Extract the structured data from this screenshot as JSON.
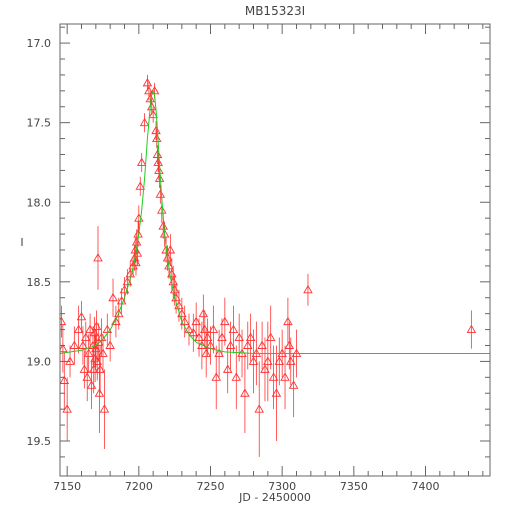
{
  "chart_data": {
    "type": "scatter",
    "title": "MB15323I",
    "xlabel": "JD - 2450000",
    "ylabel": "I",
    "xlim": [
      7145,
      7445
    ],
    "ylim": [
      19.72,
      16.88
    ],
    "y_inverted": true,
    "x_ticks": [
      "7150",
      "7200",
      "7250",
      "7300",
      "7350",
      "7400"
    ],
    "y_ticks": [
      "17.0",
      "17.5",
      "18.0",
      "18.5",
      "19.0",
      "19.5"
    ],
    "grid": false,
    "legend": "none",
    "colors": {
      "observations": "#ff3333",
      "model": "#22cc22",
      "axes": "#666666"
    },
    "series": [
      {
        "kind": "observations",
        "x": [
          7146,
          7147,
          7148,
          7150,
          7152,
          7155,
          7158,
          7160,
          7161,
          7162,
          7163,
          7164,
          7165,
          7166,
          7167,
          7168,
          7168.5,
          7169,
          7169.5,
          7170,
          7170.5,
          7171,
          7171.5,
          7172,
          7172.5,
          7173,
          7174,
          7175,
          7176,
          7178,
          7180,
          7182,
          7184,
          7186,
          7188,
          7190,
          7192,
          7194,
          7196,
          7197,
          7197.5,
          7198,
          7198.5,
          7199,
          7199.5,
          7200,
          7201,
          7202,
          7204,
          7206,
          7207,
          7208,
          7209,
          7210,
          7211,
          7212,
          7212.5,
          7213,
          7213.5,
          7214,
          7214.5,
          7215,
          7216,
          7217,
          7218,
          7219,
          7220,
          7221,
          7222,
          7223,
          7224,
          7225,
          7226,
          7228,
          7230,
          7232,
          7235,
          7238,
          7240,
          7242,
          7244,
          7245,
          7246,
          7247,
          7248,
          7250,
          7252,
          7254,
          7256,
          7258,
          7260,
          7262,
          7264,
          7266,
          7268,
          7270,
          7272,
          7274,
          7276,
          7278,
          7280,
          7282,
          7284,
          7286,
          7288,
          7290,
          7292,
          7294,
          7296,
          7298,
          7300,
          7302,
          7304,
          7305,
          7306,
          7308,
          7310,
          7318,
          7432
        ],
        "y": [
          18.75,
          18.92,
          19.12,
          19.3,
          19.0,
          18.9,
          18.8,
          18.72,
          18.9,
          19.05,
          18.85,
          19.1,
          18.95,
          18.8,
          19.15,
          18.9,
          19.05,
          18.82,
          18.98,
          18.92,
          18.78,
          19.0,
          18.35,
          18.88,
          19.2,
          19.05,
          18.85,
          18.95,
          19.3,
          18.8,
          18.9,
          18.6,
          18.75,
          18.7,
          18.62,
          18.55,
          18.5,
          18.45,
          18.4,
          18.35,
          18.3,
          18.38,
          18.25,
          18.32,
          18.2,
          18.1,
          17.9,
          17.75,
          17.5,
          17.25,
          17.3,
          17.35,
          17.4,
          17.45,
          17.3,
          17.55,
          17.6,
          17.7,
          17.75,
          17.8,
          17.85,
          17.95,
          18.05,
          18.15,
          18.2,
          18.3,
          18.35,
          18.4,
          18.3,
          18.45,
          18.5,
          18.55,
          18.6,
          18.65,
          18.7,
          18.75,
          18.8,
          18.82,
          18.75,
          18.85,
          18.9,
          18.7,
          18.8,
          18.95,
          18.85,
          18.9,
          18.8,
          19.1,
          18.95,
          18.85,
          18.75,
          19.05,
          18.9,
          18.8,
          19.1,
          18.85,
          18.95,
          19.2,
          18.9,
          18.85,
          19.0,
          18.95,
          19.3,
          18.9,
          19.05,
          19.0,
          18.85,
          19.1,
          19.2,
          19.0,
          18.95,
          19.1,
          18.75,
          18.9,
          19.0,
          19.15,
          18.95,
          18.55,
          18.8
        ],
        "err": [
          0.1,
          0.15,
          0.18,
          0.2,
          0.1,
          0.12,
          0.15,
          0.1,
          0.12,
          0.12,
          0.1,
          0.15,
          0.12,
          0.1,
          0.15,
          0.12,
          0.15,
          0.1,
          0.15,
          0.12,
          0.1,
          0.12,
          0.2,
          0.12,
          0.25,
          0.15,
          0.12,
          0.12,
          0.25,
          0.1,
          0.1,
          0.12,
          0.1,
          0.1,
          0.08,
          0.08,
          0.08,
          0.08,
          0.06,
          0.08,
          0.08,
          0.08,
          0.08,
          0.08,
          0.08,
          0.08,
          0.06,
          0.06,
          0.06,
          0.05,
          0.06,
          0.05,
          0.05,
          0.05,
          0.05,
          0.06,
          0.06,
          0.06,
          0.06,
          0.06,
          0.06,
          0.06,
          0.08,
          0.08,
          0.08,
          0.08,
          0.08,
          0.08,
          0.1,
          0.1,
          0.1,
          0.1,
          0.1,
          0.1,
          0.1,
          0.1,
          0.1,
          0.12,
          0.12,
          0.12,
          0.15,
          0.12,
          0.12,
          0.15,
          0.12,
          0.12,
          0.15,
          0.2,
          0.15,
          0.12,
          0.15,
          0.15,
          0.15,
          0.15,
          0.2,
          0.15,
          0.15,
          0.25,
          0.15,
          0.15,
          0.2,
          0.2,
          0.3,
          0.15,
          0.2,
          0.25,
          0.2,
          0.2,
          0.3,
          0.15,
          0.15,
          0.2,
          0.15,
          0.15,
          0.15,
          0.2,
          0.15,
          0.1,
          0.12
        ]
      },
      {
        "kind": "model",
        "x": [
          7145,
          7160,
          7170,
          7175,
          7180,
          7185,
          7190,
          7195,
          7198,
          7200,
          7202,
          7204,
          7206,
          7208,
          7209,
          7210,
          7211,
          7212,
          7213,
          7214,
          7216,
          7218,
          7220,
          7222,
          7225,
          7230,
          7235,
          7240,
          7250,
          7260,
          7280,
          7300,
          7350,
          7400,
          7445
        ],
        "y": [
          18.95,
          18.93,
          18.9,
          18.86,
          18.8,
          18.72,
          18.6,
          18.45,
          18.32,
          18.2,
          18.05,
          17.85,
          17.6,
          17.4,
          17.32,
          17.3,
          17.33,
          17.42,
          17.55,
          17.7,
          17.98,
          18.2,
          18.35,
          18.47,
          18.6,
          18.75,
          18.83,
          18.88,
          18.92,
          18.94,
          18.95,
          18.95,
          18.95,
          18.95,
          18.95
        ]
      }
    ]
  }
}
